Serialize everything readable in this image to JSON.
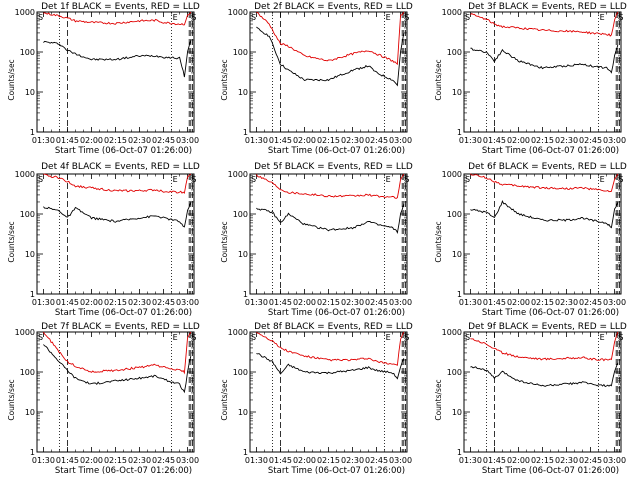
{
  "figure": {
    "xlabel": "Start Time (06-Oct-07 01:26:00)",
    "ylabel": "Counts/sec",
    "x_tick_labels": [
      "01:30",
      "01:45",
      "02:00",
      "02:15",
      "02:30",
      "02:45",
      "03:00"
    ],
    "y_tick_labels": [
      "1",
      "10",
      "100",
      "1000"
    ],
    "corner_labels": [
      "S",
      "E",
      "S"
    ]
  },
  "colors": {
    "events": "#000000",
    "lld": "#e00000",
    "frame": "#000000"
  },
  "chart_data": [
    {
      "type": "line",
      "title": "Det 1f BLACK = Events, RED = LLD",
      "xlim": [
        "01:26",
        "03:04"
      ],
      "ylim": [
        1,
        1000
      ],
      "yscale": "log",
      "x": [
        "01:30",
        "01:40",
        "01:45",
        "01:50",
        "02:00",
        "02:15",
        "02:30",
        "02:40",
        "02:45",
        "02:55",
        "02:58",
        "03:00",
        "03:02"
      ],
      "series": [
        {
          "name": "Events",
          "values": [
            180,
            160,
            110,
            90,
            65,
            65,
            80,
            80,
            75,
            70,
            25,
            100,
            200
          ]
        },
        {
          "name": "LLD",
          "values": [
            950,
            800,
            700,
            600,
            550,
            520,
            600,
            620,
            550,
            500,
            500,
            800,
            1000
          ]
        }
      ]
    },
    {
      "type": "line",
      "title": "Det 2f BLACK = Events, RED = LLD",
      "xlim": [
        "01:26",
        "03:04"
      ],
      "ylim": [
        1,
        1000
      ],
      "yscale": "log",
      "x": [
        "01:30",
        "01:38",
        "01:45",
        "01:50",
        "02:00",
        "02:15",
        "02:30",
        "02:40",
        "02:45",
        "02:55",
        "02:58",
        "03:00",
        "03:02"
      ],
      "series": [
        {
          "name": "Events",
          "values": [
            400,
            250,
            50,
            35,
            20,
            20,
            35,
            45,
            30,
            20,
            15,
            100,
            300
          ]
        },
        {
          "name": "LLD",
          "values": [
            1000,
            500,
            160,
            140,
            80,
            60,
            90,
            110,
            90,
            60,
            50,
            800,
            1000
          ]
        }
      ]
    },
    {
      "type": "line",
      "title": "Det 3f BLACK = Events, RED = LLD",
      "xlim": [
        "01:26",
        "03:04"
      ],
      "ylim": [
        1,
        1000
      ],
      "yscale": "log",
      "x": [
        "01:30",
        "01:40",
        "01:45",
        "01:50",
        "02:00",
        "02:15",
        "02:30",
        "02:40",
        "02:45",
        "02:55",
        "02:58",
        "03:00",
        "03:02"
      ],
      "series": [
        {
          "name": "Events",
          "values": [
            120,
            100,
            60,
            110,
            60,
            40,
            45,
            50,
            45,
            40,
            30,
            80,
            150
          ]
        },
        {
          "name": "LLD",
          "values": [
            900,
            650,
            500,
            430,
            400,
            350,
            330,
            320,
            300,
            280,
            260,
            600,
            1000
          ]
        }
      ]
    },
    {
      "type": "line",
      "title": "Det 4f BLACK = Events, RED = LLD",
      "xlim": [
        "01:26",
        "03:04"
      ],
      "ylim": [
        1,
        1000
      ],
      "yscale": "log",
      "x": [
        "01:30",
        "01:40",
        "01:45",
        "01:50",
        "02:00",
        "02:15",
        "02:30",
        "02:40",
        "02:45",
        "02:55",
        "02:58",
        "03:00",
        "03:02"
      ],
      "series": [
        {
          "name": "Events",
          "values": [
            150,
            120,
            80,
            140,
            80,
            65,
            80,
            90,
            80,
            65,
            45,
            120,
            200
          ]
        },
        {
          "name": "LLD",
          "values": [
            950,
            800,
            650,
            500,
            450,
            380,
            380,
            400,
            370,
            350,
            350,
            800,
            1000
          ]
        }
      ]
    },
    {
      "type": "line",
      "title": "Det 5f BLACK = Events, RED = LLD",
      "xlim": [
        "01:26",
        "03:04"
      ],
      "ylim": [
        1,
        1000
      ],
      "yscale": "log",
      "x": [
        "01:30",
        "01:40",
        "01:45",
        "01:50",
        "02:00",
        "02:15",
        "02:30",
        "02:40",
        "02:45",
        "02:55",
        "02:58",
        "03:00",
        "03:02"
      ],
      "series": [
        {
          "name": "Events",
          "values": [
            140,
            110,
            60,
            100,
            55,
            40,
            45,
            65,
            55,
            45,
            35,
            100,
            180
          ]
        },
        {
          "name": "LLD",
          "values": [
            950,
            600,
            420,
            350,
            320,
            280,
            280,
            300,
            280,
            260,
            260,
            700,
            1000
          ]
        }
      ]
    },
    {
      "type": "line",
      "title": "Det 6f BLACK = Events, RED = LLD",
      "xlim": [
        "01:26",
        "03:04"
      ],
      "ylim": [
        1,
        1000
      ],
      "yscale": "log",
      "x": [
        "01:30",
        "01:40",
        "01:45",
        "01:50",
        "02:00",
        "02:15",
        "02:30",
        "02:40",
        "02:45",
        "02:55",
        "02:58",
        "03:00",
        "03:02"
      ],
      "series": [
        {
          "name": "Events",
          "values": [
            130,
            110,
            80,
            200,
            100,
            70,
            70,
            80,
            70,
            60,
            45,
            130,
            200
          ]
        },
        {
          "name": "LLD",
          "values": [
            1000,
            800,
            650,
            550,
            500,
            450,
            430,
            450,
            420,
            380,
            360,
            700,
            1000
          ]
        }
      ]
    },
    {
      "type": "line",
      "title": "Det 7f BLACK = Events, RED = LLD",
      "xlim": [
        "01:26",
        "03:04"
      ],
      "ylim": [
        1,
        1000
      ],
      "yscale": "log",
      "x": [
        "01:30",
        "01:38",
        "01:45",
        "01:50",
        "02:00",
        "02:15",
        "02:30",
        "02:40",
        "02:45",
        "02:55",
        "02:58",
        "03:00",
        "03:02"
      ],
      "series": [
        {
          "name": "Events",
          "values": [
            500,
            220,
            110,
            70,
            50,
            60,
            70,
            80,
            65,
            50,
            30,
            100,
            250
          ]
        },
        {
          "name": "LLD",
          "values": [
            1000,
            400,
            180,
            140,
            100,
            110,
            130,
            150,
            130,
            110,
            100,
            700,
            1000
          ]
        }
      ]
    },
    {
      "type": "line",
      "title": "Det 8f BLACK = Events, RED = LLD",
      "xlim": [
        "01:26",
        "03:04"
      ],
      "ylim": [
        1,
        1000
      ],
      "yscale": "log",
      "x": [
        "01:30",
        "01:40",
        "01:45",
        "01:50",
        "02:00",
        "02:15",
        "02:30",
        "02:40",
        "02:45",
        "02:55",
        "02:58",
        "03:00",
        "03:02"
      ],
      "series": [
        {
          "name": "Events",
          "values": [
            300,
            180,
            90,
            150,
            100,
            95,
            110,
            130,
            110,
            95,
            70,
            130,
            220
          ]
        },
        {
          "name": "LLD",
          "values": [
            1000,
            600,
            400,
            330,
            250,
            200,
            200,
            220,
            180,
            160,
            150,
            700,
            1000
          ]
        }
      ]
    },
    {
      "type": "line",
      "title": "Det 9f BLACK = Events, RED = LLD",
      "xlim": [
        "01:26",
        "03:04"
      ],
      "ylim": [
        1,
        1000
      ],
      "yscale": "log",
      "x": [
        "01:30",
        "01:40",
        "01:45",
        "01:50",
        "02:00",
        "02:15",
        "02:30",
        "02:40",
        "02:45",
        "02:55",
        "02:58",
        "03:00",
        "03:02"
      ],
      "series": [
        {
          "name": "Events",
          "values": [
            140,
            110,
            70,
            100,
            60,
            45,
            50,
            55,
            50,
            45,
            45,
            100,
            170
          ]
        },
        {
          "name": "LLD",
          "values": [
            700,
            500,
            380,
            300,
            240,
            210,
            220,
            230,
            210,
            200,
            200,
            600,
            1000
          ]
        }
      ]
    }
  ]
}
